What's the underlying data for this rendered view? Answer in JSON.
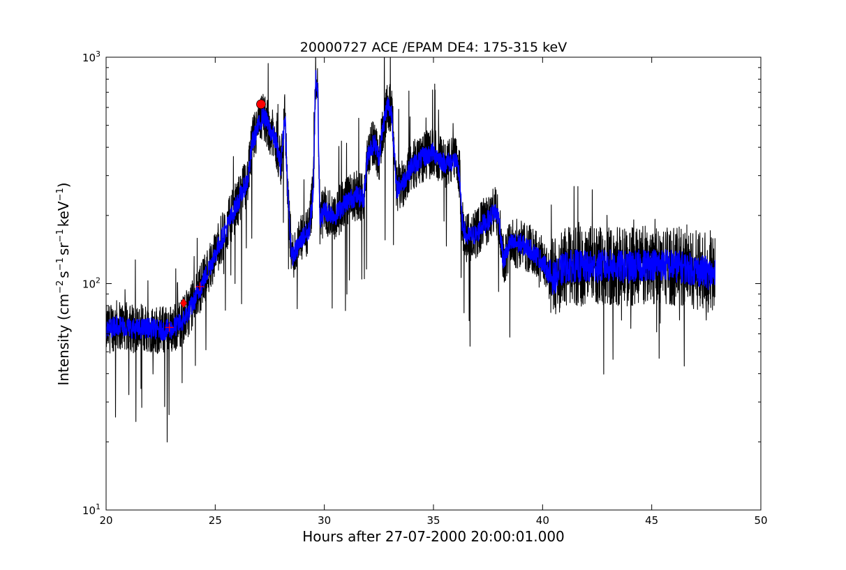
{
  "chart_data": {
    "type": "line",
    "title": "20000727 ACE /EPAM DE4: 175-315 keV",
    "xlabel": "Hours after 27-07-2000 20:00:01.000",
    "ylabel_parts": {
      "prefix": "Intensity (cm",
      "sup1": "−2",
      "mid1": "s",
      "sup2": "−1",
      "mid2": "sr",
      "sup3": "−1",
      "mid3": "keV",
      "sup4": "−1",
      "suffix": ")"
    },
    "xlim": [
      20,
      50
    ],
    "ylim": [
      10,
      1000
    ],
    "yscale": "log",
    "grid": false,
    "x_ticks": [
      20,
      25,
      30,
      35,
      40,
      45,
      50
    ],
    "x_tick_labels": [
      "20",
      "25",
      "30",
      "35",
      "40",
      "45",
      "50"
    ],
    "y_ticks": [
      10,
      100,
      1000
    ],
    "y_tick_labels": [
      {
        "base": "10",
        "exp": "1"
      },
      {
        "base": "10",
        "exp": "2"
      },
      {
        "base": "10",
        "exp": "3"
      }
    ],
    "series": [
      {
        "role": "raw",
        "color": "#000000",
        "x": [
          20.0,
          20.5,
          21.0,
          21.5,
          22.0,
          22.5,
          23.0,
          23.5,
          24.0,
          24.5,
          25.0,
          25.5,
          26.0,
          26.5,
          26.7,
          27.0,
          27.2,
          27.5,
          27.8,
          28.0,
          28.2,
          28.3,
          28.5,
          28.7,
          29.0,
          29.3,
          29.5,
          29.6,
          29.7,
          29.8,
          30.0,
          30.5,
          31.0,
          31.5,
          31.8,
          32.0,
          32.3,
          32.5,
          32.7,
          32.9,
          33.1,
          33.3,
          33.6,
          34.0,
          34.5,
          35.0,
          35.5,
          36.0,
          36.2,
          36.3,
          36.5,
          37.0,
          37.2,
          37.5,
          37.8,
          38.0,
          38.2,
          38.5,
          39.0,
          39.5,
          40.0,
          40.3,
          40.5,
          41.0,
          41.5,
          42.0,
          43.0,
          44.0,
          45.0,
          46.0,
          47.0,
          47.5,
          47.9
        ],
        "y": [
          62,
          66,
          64,
          63,
          64,
          62,
          63,
          68,
          82,
          105,
          135,
          175,
          225,
          290,
          420,
          500,
          560,
          480,
          420,
          330,
          560,
          280,
          130,
          140,
          160,
          170,
          260,
          820,
          700,
          190,
          210,
          200,
          230,
          245,
          235,
          380,
          420,
          360,
          500,
          620,
          560,
          260,
          280,
          330,
          360,
          380,
          340,
          350,
          300,
          190,
          160,
          165,
          180,
          190,
          210,
          195,
          125,
          150,
          150,
          140,
          125,
          110,
          105,
          118,
          120,
          118,
          120,
          118,
          122,
          120,
          115,
          112,
          108
        ],
        "noise_amp": 0.11,
        "density": 12
      },
      {
        "role": "smoothed",
        "color": "#0000ff",
        "x": [
          20.0,
          20.5,
          21.0,
          21.5,
          22.0,
          22.5,
          23.0,
          23.5,
          24.0,
          24.5,
          25.0,
          25.5,
          26.0,
          26.5,
          26.7,
          27.0,
          27.2,
          27.5,
          27.8,
          28.0,
          28.2,
          28.3,
          28.5,
          28.7,
          29.0,
          29.3,
          29.5,
          29.6,
          29.7,
          29.8,
          30.0,
          30.5,
          31.0,
          31.5,
          31.8,
          32.0,
          32.3,
          32.5,
          32.7,
          32.9,
          33.1,
          33.3,
          33.6,
          34.0,
          34.5,
          35.0,
          35.5,
          36.0,
          36.2,
          36.3,
          36.5,
          37.0,
          37.2,
          37.5,
          37.8,
          38.0,
          38.2,
          38.5,
          39.0,
          39.5,
          40.0,
          40.3,
          40.5,
          41.0,
          41.5,
          42.0,
          43.0,
          44.0,
          45.0,
          46.0,
          47.0,
          47.5,
          47.9
        ],
        "y": [
          62,
          66,
          64,
          63,
          64,
          62,
          63,
          68,
          82,
          105,
          135,
          175,
          225,
          290,
          420,
          500,
          560,
          480,
          420,
          330,
          560,
          280,
          130,
          140,
          160,
          170,
          260,
          820,
          700,
          190,
          210,
          200,
          230,
          245,
          235,
          380,
          420,
          360,
          500,
          620,
          560,
          260,
          280,
          330,
          360,
          380,
          340,
          350,
          300,
          190,
          160,
          165,
          180,
          190,
          210,
          195,
          125,
          150,
          150,
          140,
          125,
          110,
          105,
          118,
          120,
          118,
          120,
          118,
          122,
          120,
          115,
          112,
          108
        ],
        "noise_amp": 0.045,
        "density": 10
      }
    ],
    "markers": [
      {
        "type": "circle",
        "x": 27.1,
        "y": 620,
        "color": "#ff0000"
      },
      {
        "type": "diamond",
        "x": 23.55,
        "y": 82,
        "color": "#ff0000"
      },
      {
        "type": "plus",
        "x": 22.9,
        "y": 64,
        "color": "#ff0000"
      },
      {
        "type": "plus",
        "x": 24.3,
        "y": 97,
        "color": "#ff0000"
      }
    ]
  }
}
